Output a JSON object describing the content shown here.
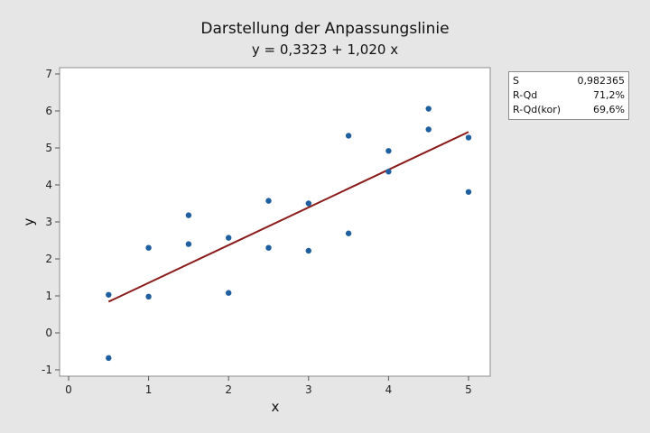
{
  "chart_data": {
    "type": "scatter",
    "title": "Darstellung der Anpassungslinie",
    "subtitle": "y = 0,3323 + 1,020 x",
    "xlabel": "x",
    "ylabel": "y",
    "xlim": [
      0,
      5.25
    ],
    "ylim": [
      -1.1,
      7.1
    ],
    "x_ticks": [
      0,
      1,
      2,
      3,
      4,
      5
    ],
    "y_ticks": [
      -1,
      0,
      1,
      2,
      3,
      4,
      5,
      6,
      7
    ],
    "x_tick_labels": [
      "0",
      "1",
      "2",
      "3",
      "4",
      "5"
    ],
    "y_tick_labels": [
      "-1",
      "0",
      "1",
      "2",
      "3",
      "4",
      "5",
      "6",
      "7"
    ],
    "grid": false,
    "points": [
      {
        "x": 0.5,
        "y": 1.03
      },
      {
        "x": 0.5,
        "y": -0.68
      },
      {
        "x": 1.0,
        "y": 2.3
      },
      {
        "x": 1.0,
        "y": 0.98
      },
      {
        "x": 1.5,
        "y": 3.18
      },
      {
        "x": 1.5,
        "y": 2.4
      },
      {
        "x": 2.0,
        "y": 2.57
      },
      {
        "x": 2.0,
        "y": 1.08
      },
      {
        "x": 2.5,
        "y": 3.57
      },
      {
        "x": 2.5,
        "y": 2.3
      },
      {
        "x": 3.0,
        "y": 3.5
      },
      {
        "x": 3.0,
        "y": 2.22
      },
      {
        "x": 3.5,
        "y": 5.33
      },
      {
        "x": 3.5,
        "y": 2.69
      },
      {
        "x": 4.0,
        "y": 4.92
      },
      {
        "x": 4.0,
        "y": 4.36
      },
      {
        "x": 4.5,
        "y": 6.06
      },
      {
        "x": 4.5,
        "y": 5.5
      },
      {
        "x": 5.0,
        "y": 5.28
      },
      {
        "x": 5.0,
        "y": 3.81
      }
    ],
    "fit_line": {
      "intercept": 0.3323,
      "slope": 1.02,
      "x_range": [
        0.5,
        5.0
      ]
    },
    "colors": {
      "points": "#1f5fa0",
      "fit_line": "#8b1a1a",
      "background": "#e6e6e6",
      "plot_area": "#ffffff"
    }
  },
  "stats": [
    {
      "label": "S",
      "value": "0,982365"
    },
    {
      "label": "R-Qd",
      "value": "71,2%"
    },
    {
      "label": "R-Qd(kor)",
      "value": "69,6%"
    }
  ]
}
